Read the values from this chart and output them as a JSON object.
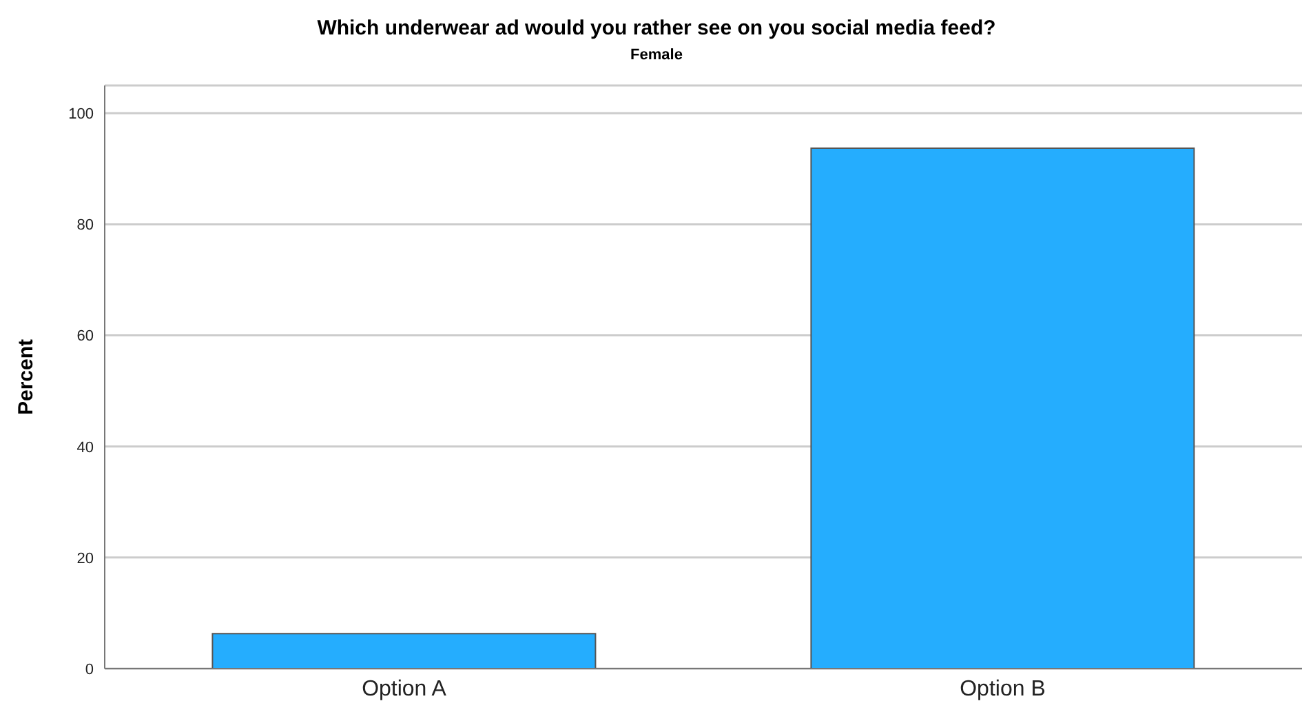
{
  "chart_data": {
    "type": "bar",
    "title": "Which underwear ad would you rather see on you social media feed?",
    "subtitle": "Female",
    "ylabel": "Percent",
    "categories": [
      "Option A",
      "Option B"
    ],
    "values": [
      6.3,
      93.7
    ],
    "color": "#25adfe",
    "ylim": [
      0,
      105
    ],
    "yticks": [
      0,
      20,
      40,
      60,
      80,
      100
    ],
    "grid": "y"
  }
}
